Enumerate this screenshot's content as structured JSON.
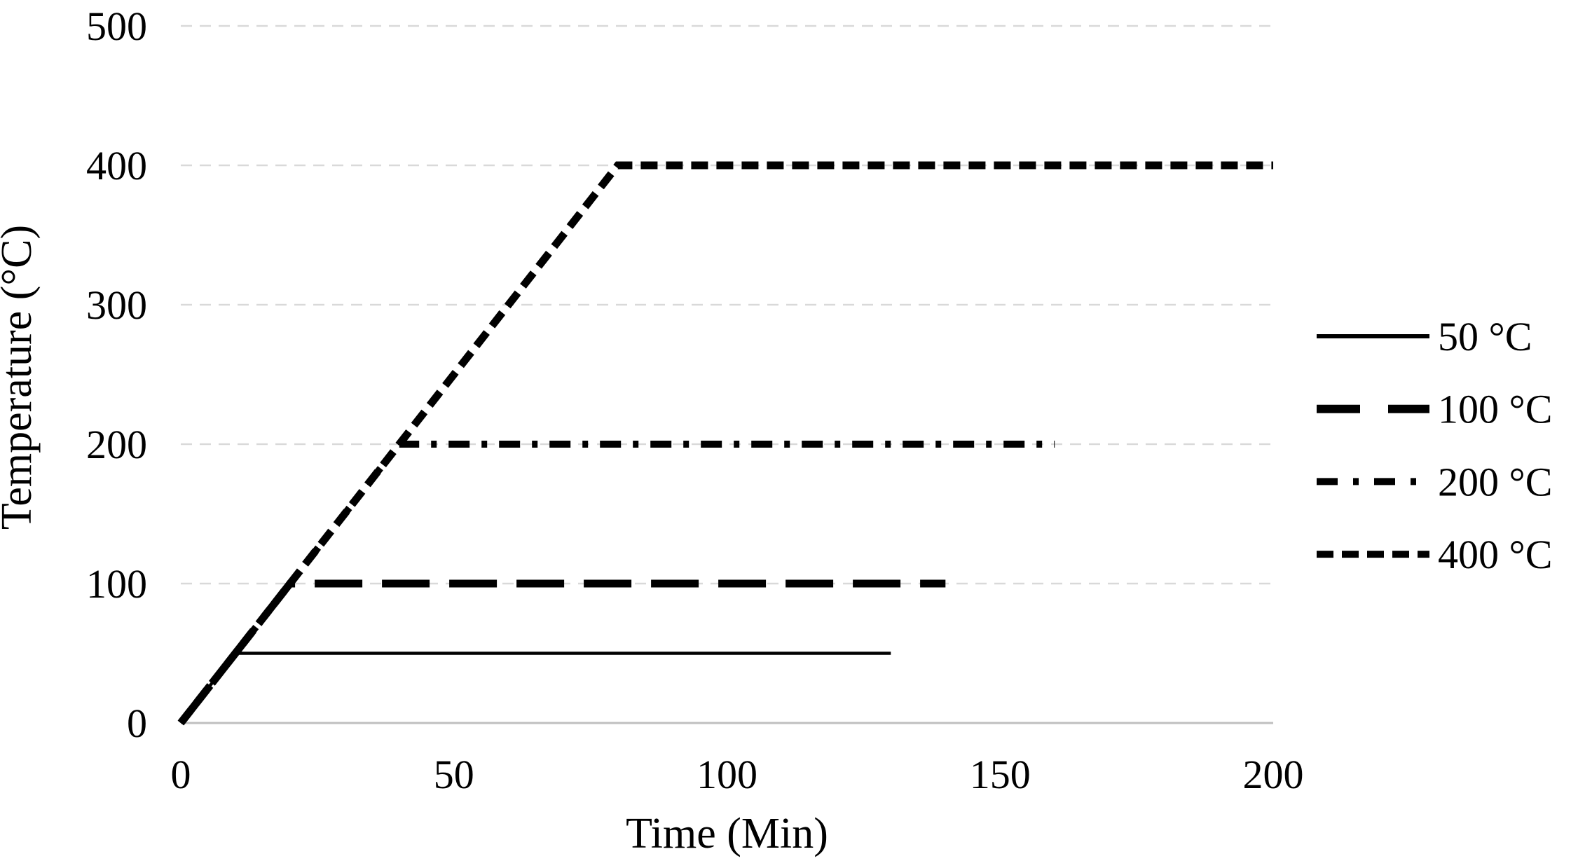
{
  "chart_data": {
    "type": "line",
    "title": "",
    "xlabel": "Time (Min)",
    "ylabel": "Temperature (°C)",
    "xlim": [
      0,
      200
    ],
    "ylim": [
      0,
      500
    ],
    "x_ticks": [
      0,
      50,
      100,
      150,
      200
    ],
    "y_ticks": [
      0,
      100,
      200,
      300,
      400,
      500
    ],
    "grid": "horizontal-dashed",
    "legend_position": "right-middle",
    "series": [
      {
        "name": "50 °C",
        "dash": "solid",
        "points": [
          [
            0,
            0
          ],
          [
            10,
            50
          ],
          [
            130,
            50
          ]
        ]
      },
      {
        "name": "100 °C",
        "dash": "long-dash",
        "points": [
          [
            0,
            0
          ],
          [
            20,
            100
          ],
          [
            140,
            100
          ]
        ]
      },
      {
        "name": "200 °C",
        "dash": "dash-dot",
        "points": [
          [
            0,
            0
          ],
          [
            40,
            200
          ],
          [
            160,
            200
          ]
        ]
      },
      {
        "name": "400 °C",
        "dash": "short-dash",
        "points": [
          [
            0,
            0
          ],
          [
            80,
            400
          ],
          [
            200,
            400
          ]
        ]
      }
    ],
    "colors": {
      "series_line": "#000000",
      "gridline": "#d9d9d9",
      "axis_line": "#bfbfbf",
      "text": "#000000",
      "background": "#ffffff"
    }
  }
}
